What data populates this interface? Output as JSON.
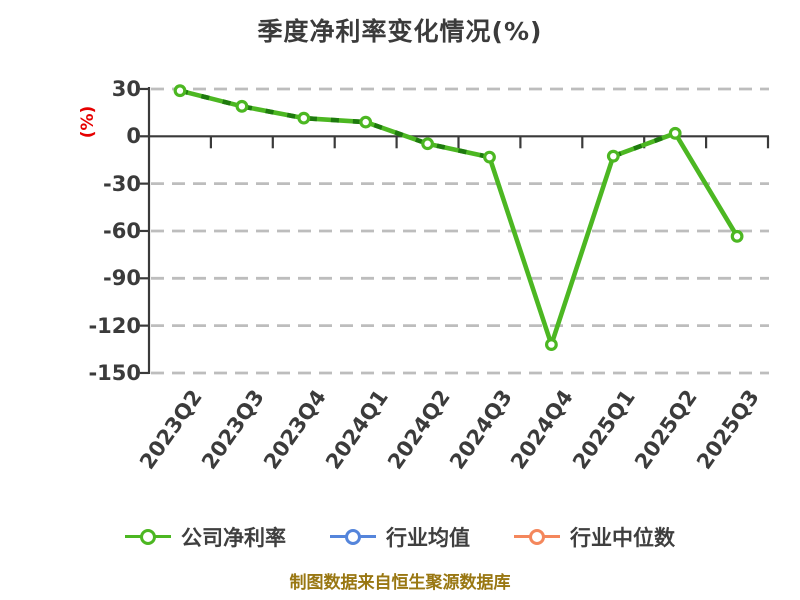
{
  "title": "季度净利率变化情况(%)",
  "chart_data": {
    "type": "line",
    "title": "季度净利率变化情况(%)",
    "xlabel": "",
    "ylabel": "(%)",
    "ylim": [
      -150,
      30
    ],
    "y_ticks": [
      30,
      0,
      -30,
      -60,
      -90,
      -120,
      -150
    ],
    "grid": "horizontal-dashed",
    "legend_position": "bottom",
    "categories": [
      "2023Q2",
      "2023Q3",
      "2023Q4",
      "2024Q1",
      "2024Q2",
      "2024Q3",
      "2024Q4",
      "2025Q1",
      "2025Q2",
      "2025Q3"
    ],
    "series": [
      {
        "name": "公司净利率",
        "color": "#4CB722",
        "marker": "circle-white-fill",
        "values": [
          28.9,
          19.0,
          11.5,
          9.0,
          -4.7,
          -13.2,
          -132.0,
          -12.6,
          1.9,
          -63.4
        ]
      },
      {
        "name": "行业均值",
        "color": "#5585DB",
        "marker": "circle-white-fill",
        "values": []
      },
      {
        "name": "行业中位数",
        "color": "#F4875C",
        "marker": "circle-white-fill",
        "values": []
      }
    ]
  },
  "footer": {
    "text": "制图数据来自恒生聚源数据库"
  },
  "colors": {
    "title_text": "#3b3b3b",
    "axis_text": "#3b3b3b",
    "axis_line": "#3a3a3a",
    "grid_line": "#bdbdbd",
    "ylabel_color": "#e60000",
    "series_dash_overlay": "#1e7a0e",
    "footer_text": "#997712",
    "background": "#ffffff"
  }
}
